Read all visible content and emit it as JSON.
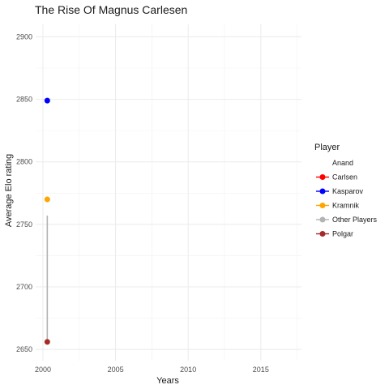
{
  "chart_data": {
    "type": "scatter",
    "title": "The Rise Of Magnus Carlesen",
    "xlabel": "Years",
    "ylabel": "Average Elo rating",
    "xlim": [
      1999.5,
      2017.8
    ],
    "ylim": [
      2641,
      2910
    ],
    "x_ticks": [
      2000,
      2005,
      2010,
      2015
    ],
    "y_ticks": [
      2650,
      2700,
      2750,
      2800,
      2850,
      2900
    ],
    "grid": true,
    "legend_position": "right",
    "legend_title": "Player",
    "series": [
      {
        "name": "Anand",
        "color": "#ffffff",
        "points": []
      },
      {
        "name": "Carlsen",
        "color": "#ff0000",
        "points": []
      },
      {
        "name": "Kasparov",
        "color": "#0000ff",
        "points": [
          {
            "x": 2000.3,
            "y": 2849
          }
        ]
      },
      {
        "name": "Kramnik",
        "color": "#ffa500",
        "points": [
          {
            "x": 2000.3,
            "y": 2770
          }
        ]
      },
      {
        "name": "Other Players",
        "color": "#b3b3b3",
        "line": [
          {
            "x": 2000.3,
            "y": 2757
          },
          {
            "x": 2000.3,
            "y": 2656
          }
        ]
      },
      {
        "name": "Polgar",
        "color": "#a52a2a",
        "points": [
          {
            "x": 2000.3,
            "y": 2656
          }
        ]
      }
    ]
  }
}
